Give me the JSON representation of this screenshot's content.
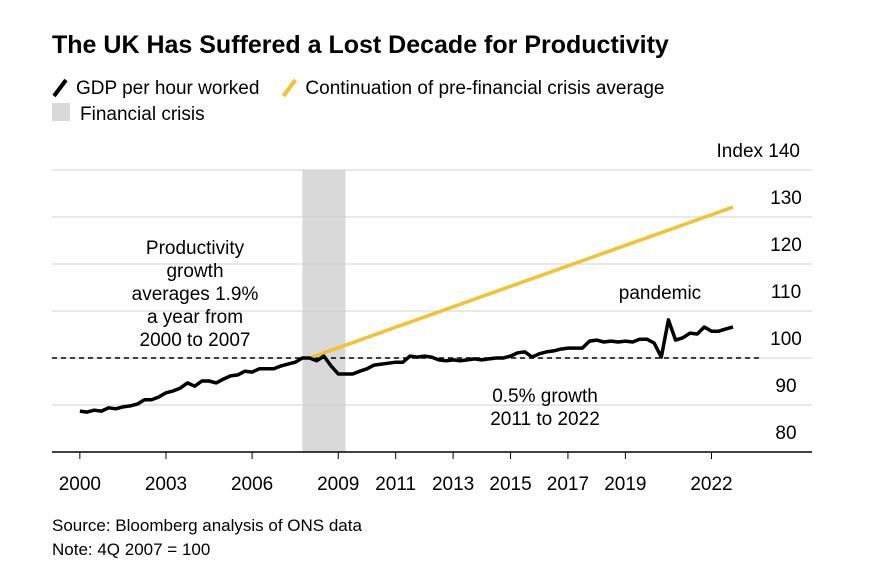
{
  "chart_data": {
    "type": "line",
    "title": "The UK Has Suffered a Lost Decade for Productivity",
    "ylabel_note": "Note: 4Q 2007 = 100",
    "source": "Source: Bloomberg analysis of ONS data",
    "shaded_region": {
      "name": "Financial crisis",
      "start": 2007.75,
      "end": 2009.25,
      "color": "#d9d9d9"
    },
    "reference_line": 100,
    "annotations": [
      {
        "lines": [
          "Productivity",
          "growth",
          "averages 1.9%",
          "a year from",
          "2000 to 2007"
        ]
      },
      {
        "lines": [
          "pandemic"
        ]
      },
      {
        "lines": [
          "0.5% growth",
          "2011 to 2022"
        ]
      }
    ],
    "series": [
      {
        "name": "GDP per hour worked",
        "color": "#000000",
        "x": [
          2000,
          2000.25,
          2000.5,
          2000.75,
          2001,
          2001.25,
          2001.5,
          2001.75,
          2002,
          2002.25,
          2002.5,
          2002.75,
          2003,
          2003.25,
          2003.5,
          2003.75,
          2004,
          2004.25,
          2004.5,
          2004.75,
          2005,
          2005.25,
          2005.5,
          2005.75,
          2006,
          2006.25,
          2006.5,
          2006.75,
          2007,
          2007.25,
          2007.5,
          2007.75,
          2008,
          2008.25,
          2008.5,
          2008.75,
          2009,
          2009.25,
          2009.5,
          2009.75,
          2010,
          2010.25,
          2010.5,
          2010.75,
          2011,
          2011.25,
          2011.5,
          2011.75,
          2012,
          2012.25,
          2012.5,
          2012.75,
          2013,
          2013.25,
          2013.5,
          2013.75,
          2014,
          2014.25,
          2014.5,
          2014.75,
          2015,
          2015.25,
          2015.5,
          2015.75,
          2016,
          2016.25,
          2016.5,
          2016.75,
          2017,
          2017.25,
          2017.5,
          2017.75,
          2018,
          2018.25,
          2018.5,
          2018.75,
          2019,
          2019.25,
          2019.5,
          2019.75,
          2020,
          2020.25,
          2020.5,
          2020.75,
          2021,
          2021.25,
          2021.5,
          2021.75,
          2022,
          2022.25,
          2022.5,
          2022.75
        ],
        "values": [
          88.7,
          88.5,
          88.9,
          88.7,
          89.4,
          89.2,
          89.6,
          89.8,
          90.2,
          91.1,
          91.1,
          91.7,
          92.6,
          93.0,
          93.6,
          94.7,
          94.0,
          95.1,
          95.1,
          94.7,
          95.5,
          96.2,
          96.4,
          97.2,
          97.0,
          97.7,
          97.7,
          97.7,
          98.3,
          98.7,
          99.1,
          100,
          100,
          99.4,
          100.4,
          98.3,
          96.6,
          96.6,
          96.6,
          97.2,
          97.7,
          98.5,
          98.7,
          98.9,
          99.1,
          99.1,
          100.4,
          100.2,
          100.4,
          100.2,
          99.6,
          99.4,
          99.6,
          99.4,
          99.6,
          99.8,
          99.6,
          99.8,
          100,
          100,
          100.4,
          101.1,
          101.3,
          100.2,
          100.9,
          101.3,
          101.5,
          101.9,
          102.1,
          102.1,
          102.1,
          103.6,
          103.8,
          103.4,
          103.6,
          103.4,
          103.6,
          103.4,
          104.0,
          104.0,
          103.2,
          100.2,
          108.1,
          103.8,
          104.3,
          105.3,
          105.1,
          106.6,
          105.7,
          105.7,
          106.2,
          106.6
        ]
      },
      {
        "name": "Continuation of pre-financial crisis average",
        "color": "#f2c233",
        "x": [
          2008,
          2022.75
        ],
        "values": [
          100,
          132.1
        ]
      }
    ],
    "xlim": [
      1999.03,
      2025.5
    ],
    "xticks": [
      2000,
      2003,
      2006,
      2009,
      2011,
      2013,
      2015,
      2017,
      2019,
      2022
    ],
    "ylim": [
      80,
      140
    ],
    "yticks": [
      80,
      90,
      100,
      110,
      120,
      130,
      {
        "value": 140,
        "label": "Index 140"
      }
    ],
    "grid": true
  }
}
